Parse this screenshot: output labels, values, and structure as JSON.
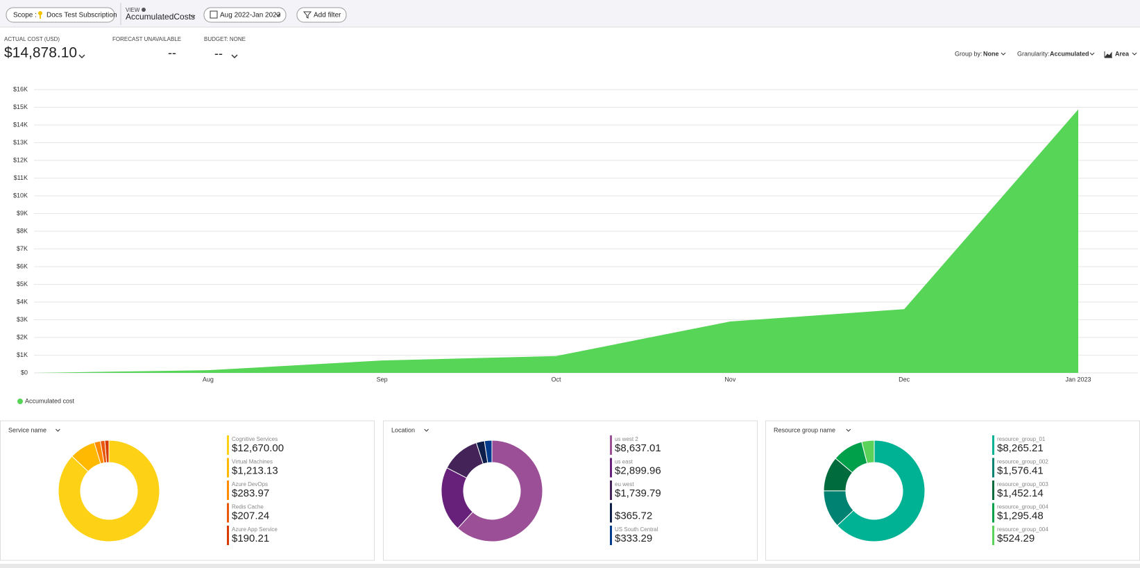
{
  "toolbar": {
    "scope_label": "Scope :",
    "scope": "Docs Test Subscription",
    "view_label": "VIEW",
    "view": "AccumulatedCosts",
    "date_range": "Aug 2022-Jan 2023",
    "add_filter": "Add filter"
  },
  "summary": {
    "actual_cost_label": "ACTUAL COST (USD)",
    "actual_cost": "$14,878.10",
    "forecast_label": "FORECAST UNAVAILABLE",
    "forecast": "--",
    "budget_label": "BUDGET: NONE",
    "budget": "--"
  },
  "controls": {
    "group_by_label": "Group by:",
    "group_by": "None",
    "granularity_label": "Granularity:",
    "granularity": "Accumulated",
    "chart_type": "Area"
  },
  "chart_data": [
    {
      "type": "area",
      "categories": [
        null,
        "Aug",
        "Sep",
        "Oct",
        "Nov",
        "Dec",
        "Jan 2023"
      ],
      "series": [
        {
          "name": "Accumulated cost",
          "color": "#57d557",
          "values": [
            0,
            150,
            700,
            950,
            2900,
            3600,
            14878.1
          ]
        }
      ],
      "ylim": [
        0,
        16000
      ],
      "yticks": [
        {
          "value": 0,
          "label": "$0"
        },
        {
          "value": 1000,
          "label": "$1K"
        },
        {
          "value": 2000,
          "label": "$2K"
        },
        {
          "value": 3000,
          "label": "$3K"
        },
        {
          "value": 4000,
          "label": "$4K"
        },
        {
          "value": 5000,
          "label": "$5K"
        },
        {
          "value": 6000,
          "label": "$6K"
        },
        {
          "value": 7000,
          "label": "$7K"
        },
        {
          "value": 8000,
          "label": "$8K"
        },
        {
          "value": 9000,
          "label": "$9K"
        },
        {
          "value": 10000,
          "label": "$10K"
        },
        {
          "value": 11000,
          "label": "$11K"
        },
        {
          "value": 12000,
          "label": "$12K"
        },
        {
          "value": 13000,
          "label": "$13K"
        },
        {
          "value": 14000,
          "label": "$14K"
        },
        {
          "value": 15000,
          "label": "$15K"
        },
        {
          "value": 16000,
          "label": "$16K"
        }
      ],
      "grid": true
    },
    {
      "type": "donut",
      "title": "Service name",
      "categories": [
        "Cognitive Services",
        "Virtual Machines",
        "Azure DevOps",
        "Redis Cache",
        "Azure App Service"
      ],
      "values": [
        12670,
        1213.13,
        283.97,
        207.24,
        190.21
      ],
      "value_labels": [
        "$12,670.00",
        "$1,213.13",
        "$283.97",
        "$207.24",
        "$190.21"
      ],
      "colors": [
        "#fcd116",
        "#ffb900",
        "#ff8c00",
        "#e8590c",
        "#d83b01"
      ]
    },
    {
      "type": "donut",
      "title": "Location",
      "categories": [
        "us west 2",
        "us east",
        "eu west",
        null,
        "US South Central"
      ],
      "values": [
        8637.01,
        2899.96,
        1739.79,
        365.72,
        333.29
      ],
      "value_labels": [
        "$8,637.01",
        "$2,899.96",
        "$1,739.79",
        "$365.72",
        "$333.29"
      ],
      "colors": [
        "#9b4f96",
        "#68217a",
        "#442359",
        "#0e1e4a",
        "#003a8c"
      ]
    },
    {
      "type": "donut",
      "title": "Resource group name",
      "categories": [
        "resource_group_01",
        "resource_group_002",
        "resource_group_003",
        "resource_group_004",
        "resource_group_004"
      ],
      "values": [
        8265.21,
        1576.41,
        1452.14,
        1295.48,
        524.29
      ],
      "value_labels": [
        "$8,265.21",
        "$1,576.41",
        "$1,452.14",
        "$1,295.48",
        "$524.29"
      ],
      "colors": [
        "#00b294",
        "#008272",
        "#006b3c",
        "#00a04a",
        "#5bd35b"
      ]
    }
  ]
}
